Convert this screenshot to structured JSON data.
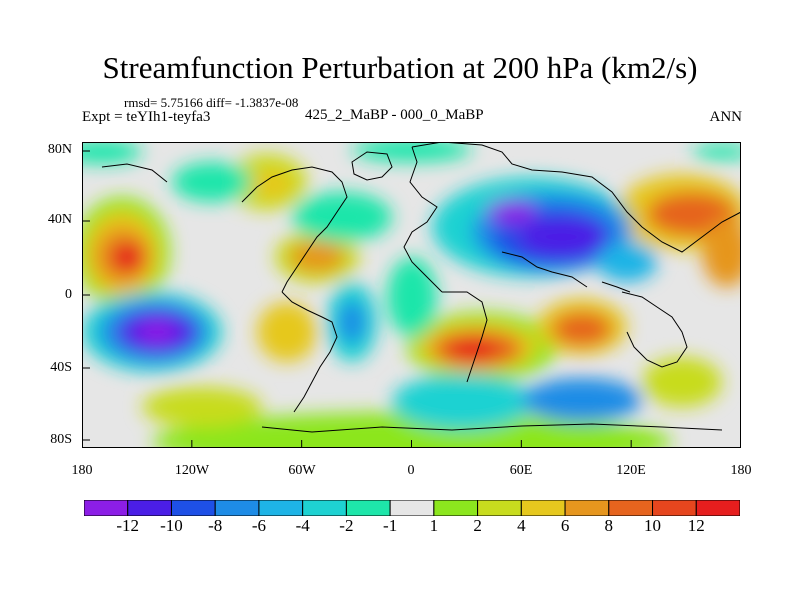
{
  "title": "Streamfunction Perturbation at 200 hPa (km2/s)",
  "stats": "rmsd= 5.75166 diff= -1.3837e-08",
  "experiment": "Expt = teYIh1-teyfa3",
  "subtitle": "425_2_MaBP - 000_0_MaBP",
  "period": "ANN",
  "y_axis": {
    "ticks": [
      "80N",
      "40N",
      "0",
      "40S",
      "80S"
    ]
  },
  "x_axis": {
    "ticks": [
      "180",
      "120W",
      "60W",
      "0",
      "60E",
      "120E",
      "180"
    ]
  },
  "colorbar": {
    "labels": [
      "-12",
      "-10",
      "-8",
      "-6",
      "-4",
      "-2",
      "-1",
      "1",
      "2",
      "4",
      "6",
      "8",
      "10",
      "12"
    ],
    "colors": [
      "#8c1ee6",
      "#4b1ee6",
      "#1e50e6",
      "#1e8ce6",
      "#1eb4e6",
      "#1ed2d2",
      "#1ee6aa",
      "#e6e6e6",
      "#8ce61e",
      "#c8dc1e",
      "#e6c81e",
      "#e6961e",
      "#e6641e",
      "#e6461e",
      "#e61e1e"
    ]
  },
  "map": {
    "background": "#e6e6e6",
    "coastline_color": "#000000"
  }
}
